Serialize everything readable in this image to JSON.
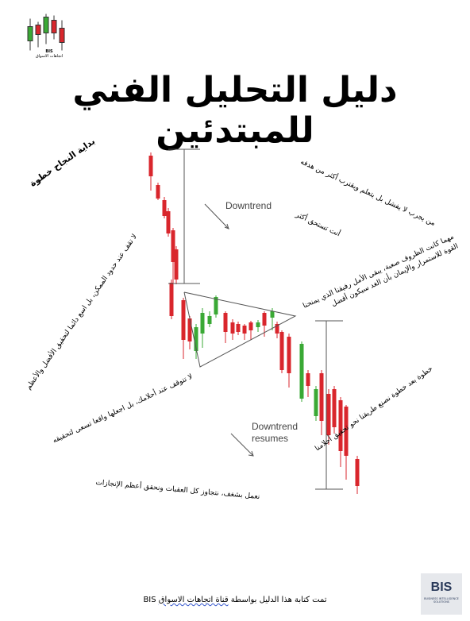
{
  "logo": {
    "caption_ar": "اتجاهات الاسواق",
    "caption_en": "BIS"
  },
  "title": "دليل التحليل الفني للمبتدئين",
  "phrases": {
    "first_step": "بداية النجاح خطوة",
    "no_try": "من يجرب لا يفشل بل يتعلم ويقترب أكثر من هدفه",
    "you_deserve": "أنت تستحق أكثر",
    "whatever": "مهما كانت الظروف صعبة، يبقى الأمل رفيقنا الذي يمنحنا القوة للاستمرار والإيمان بأن الغد سيكون أفضل",
    "no_stop_possible": "لا تقف عند حدود الممكن، بل اسع دائما لتحقيق الأفضل والأعظم",
    "step_by_step": "خطوة بعد خطوة نصنع طريقنا نحو تحقيق أحلامنا",
    "no_stop_dreams": "لا تتوقف عند أحلامك، بل اجعلها واقعا تسعى لتحقيقه",
    "work_passion": "نعمل بشغف، نتجاوز كل العقبات ونحقق أعظم الإنجازات"
  },
  "labels": {
    "downtrend": "Downtrend",
    "resumes_line1": "Downtrend",
    "resumes_line2": "resumes"
  },
  "footer": {
    "prefix": "تمت كتابة هذا الدليل بواسطة",
    "channel": "قناة اتجاهات الاسواق",
    "brand": "BIS"
  },
  "badge": {
    "text": "BIS",
    "sub": "BUSINESS INTELLIGENCE SOLUTIONS"
  },
  "colors": {
    "bearish": "#d9262c",
    "bullish": "#3aa935",
    "line": "#555555"
  }
}
